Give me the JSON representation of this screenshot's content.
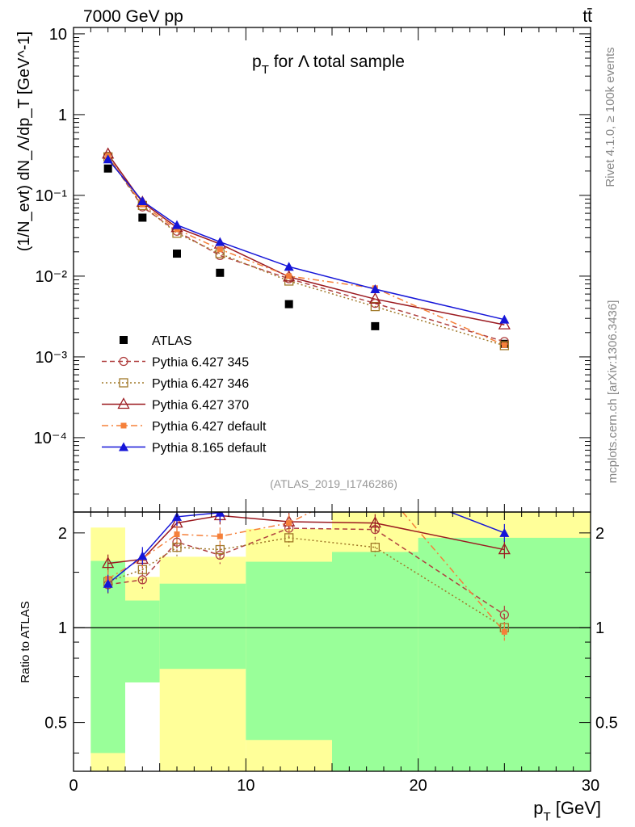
{
  "header": {
    "left": "7000 GeV pp",
    "right": "tt̄"
  },
  "side_labels": {
    "rivet": "Rivet 4.1.0, ≥ 100k events",
    "mcplots": "mcplots.cern.ch [arXiv:1306.3436]"
  },
  "colors": {
    "atlas": "#000000",
    "p345": "#b04040",
    "p346": "#a07828",
    "p370": "#9b1a20",
    "p6def": "#f5803a",
    "p8def": "#1515d8",
    "band_green": "#99ff99",
    "band_yellow": "#ffff99"
  },
  "chart_data": [
    {
      "type": "scatter",
      "title_main": "p",
      "title_sub": "T",
      "title_rest": " for Λ total sample",
      "analysis_id": "(ATLAS_2019_I1746286)",
      "ylabel": "(1/N_evt) dN_Λ/dp_T [GeV^-1]",
      "yscale": "log",
      "ylim": [
        1.2e-05,
        12
      ],
      "xlim": [
        0,
        30
      ],
      "yticks": [
        "10⁻⁴",
        "10⁻³",
        "10⁻²",
        "10⁻¹",
        "1",
        "10"
      ],
      "ytick_values": [
        0.0001,
        0.001,
        0.01,
        0.1,
        1,
        10
      ],
      "x": [
        2,
        4,
        6,
        8.5,
        12.5,
        17.5,
        25
      ],
      "series": [
        {
          "key": "atlas",
          "name": "ATLAS",
          "marker": "square",
          "line": "none",
          "values": [
            0.215,
            0.053,
            0.019,
            0.011,
            0.0045,
            0.0024,
            0.00145
          ]
        },
        {
          "key": "p345",
          "name": "Pythia 6.427 345",
          "marker": "circle-open",
          "line": "dashed",
          "values": [
            0.305,
            0.072,
            0.036,
            0.018,
            0.0093,
            0.0046,
            0.00155
          ]
        },
        {
          "key": "p346",
          "name": "Pythia 6.427 346",
          "marker": "square-open",
          "line": "dotted",
          "values": [
            0.3,
            0.075,
            0.034,
            0.019,
            0.0087,
            0.0042,
            0.00138
          ]
        },
        {
          "key": "p370",
          "name": "Pythia 6.427 370",
          "marker": "triangle-open",
          "line": "solid",
          "values": [
            0.325,
            0.082,
            0.04,
            0.025,
            0.0098,
            0.0052,
            0.0025
          ]
        },
        {
          "key": "p6def",
          "name": "Pythia 6.427 default",
          "marker": "square-small",
          "line": "dashdot",
          "values": [
            0.305,
            0.077,
            0.038,
            0.0215,
            0.01,
            0.0071,
            0.0014
          ]
        },
        {
          "key": "p8def",
          "name": "Pythia 8.165 default",
          "marker": "triangle",
          "line": "solid",
          "values": [
            0.28,
            0.085,
            0.043,
            0.0265,
            0.0131,
            0.0069,
            0.0029
          ]
        }
      ]
    },
    {
      "type": "line",
      "ylabel": "Ratio to ATLAS",
      "xlabel_main": "p",
      "xlabel_sub": "T",
      "xlabel_rest": " [GeV]",
      "yscale": "log",
      "ylim": [
        0.35,
        2.33
      ],
      "xlim": [
        0,
        30
      ],
      "xticks": [
        "0",
        "10",
        "20",
        "30"
      ],
      "xtick_values": [
        0,
        10,
        20,
        30
      ],
      "yticks": [
        "0.5",
        "1",
        "2"
      ],
      "ytick_values": [
        0.5,
        1,
        2
      ],
      "reference": 1,
      "bands": [
        {
          "x0": 1,
          "x1": 3,
          "green": [
            0.4,
            1.63
          ],
          "yellow": [
            0.35,
            2.08
          ]
        },
        {
          "x0": 3,
          "x1": 5,
          "green": [
            0.67,
            1.22
          ],
          "yellow": [
            0.35,
            1.45
          ]
        },
        {
          "x0": 5,
          "x1": 10,
          "green": [
            0.74,
            1.38
          ],
          "yellow": [
            0.35,
            1.68
          ]
        },
        {
          "x0": 10,
          "x1": 15,
          "green": [
            0.44,
            1.62
          ],
          "yellow": [
            0.35,
            2.06
          ]
        },
        {
          "x0": 15,
          "x1": 20,
          "green": [
            0.35,
            1.74
          ],
          "yellow": [
            0.35,
            2.33
          ]
        },
        {
          "x0": 20,
          "x1": 30,
          "green": [
            0.35,
            1.93
          ],
          "yellow": [
            0.35,
            2.33
          ]
        }
      ],
      "white_gap": {
        "x0": 3,
        "x1": 5,
        "y": [
          0.35,
          0.67
        ]
      },
      "x": [
        2,
        4,
        6,
        8.5,
        12.5,
        17.5,
        25
      ],
      "series": [
        {
          "key": "p345",
          "name": "Pythia 6.427 345",
          "values": [
            1.37,
            1.42,
            1.87,
            1.7,
            2.07,
            2.05,
            1.1
          ]
        },
        {
          "key": "p346",
          "name": "Pythia 6.427 346",
          "values": [
            1.4,
            1.53,
            1.8,
            1.77,
            1.93,
            1.8,
            1.0
          ]
        },
        {
          "key": "p370",
          "name": "Pythia 6.427 370",
          "values": [
            1.6,
            1.65,
            2.15,
            2.27,
            2.17,
            2.15,
            1.77
          ]
        },
        {
          "key": "p6def",
          "name": "Pythia 6.427 default",
          "values": [
            1.43,
            1.66,
            1.98,
            1.95,
            2.15,
            2.95,
            0.97
          ]
        },
        {
          "key": "p8def",
          "name": "Pythia 8.165 default",
          "values": [
            1.38,
            1.69,
            2.25,
            2.32,
            2.9,
            2.88,
            2.0
          ]
        }
      ]
    }
  ]
}
